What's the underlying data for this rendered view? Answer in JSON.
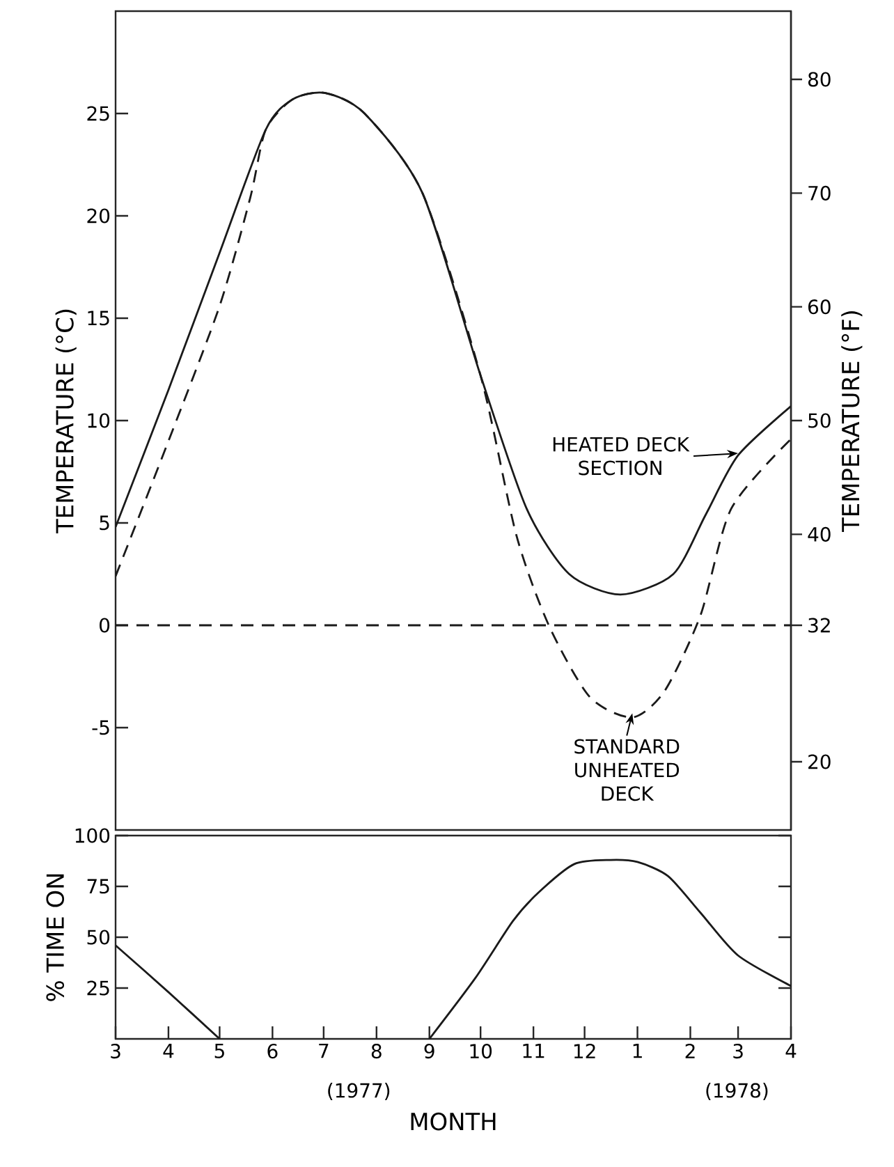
{
  "chart_data": [
    {
      "type": "line",
      "ylabel": "TEMPERATURE (°C)",
      "y2label": "TEMPERATURE (°F)",
      "xlim": [
        "1977-03-01",
        "1978-04-01"
      ],
      "ylim": [
        -10,
        30
      ],
      "yticks": [
        -5,
        0,
        5,
        10,
        15,
        20,
        25
      ],
      "y2lim": [
        14,
        86
      ],
      "y2ticks": [
        20,
        32,
        40,
        50,
        60,
        70,
        80
      ],
      "tick_labels": "y",
      "series": [
        {
          "color": "#1a1a1a",
          "line_style": "solid",
          "x": [
            "1977-03-01",
            "1977-04-01",
            "1977-05-01",
            "1977-05-28",
            "1977-06-13",
            "1977-07-02",
            "1977-07-25",
            "1977-08-28",
            "1977-10-01",
            "1977-10-28",
            "1977-11-22",
            "1977-12-22",
            "1978-01-22",
            "1978-02-10",
            "1978-03-01",
            "1978-04-01"
          ],
          "values": [
            4.8,
            11.5,
            18.2,
            24.2,
            25.7,
            26.0,
            25.0,
            21.1,
            12.2,
            5.7,
            2.5,
            1.5,
            2.5,
            5.4,
            8.3,
            10.7
          ]
        },
        {
          "color": "#1a1a1a",
          "line_style": "dashed",
          "x": [
            "1977-03-01",
            "1977-04-01",
            "1977-05-01",
            "1977-05-19",
            "1977-05-28",
            "1977-06-13",
            "1977-07-02",
            "1977-07-25",
            "1977-08-28",
            "1977-10-01",
            "1977-10-22",
            "1977-11-10",
            "1977-12-04",
            "1977-12-29",
            "1978-01-17",
            "1978-02-07",
            "1978-02-25",
            "1978-04-01"
          ],
          "values": [
            2.4,
            9.0,
            15.6,
            20.9,
            24.2,
            25.7,
            26.0,
            25.0,
            21.1,
            12.2,
            4.4,
            0,
            -3.5,
            -4.5,
            -3.2,
            0.5,
            5.7,
            9.1
          ]
        }
      ],
      "ref_lines": [
        {
          "axis": "y",
          "value": 0,
          "line_style": "dashed",
          "color": "#1a1a1a"
        }
      ],
      "annotations": [
        {
          "text": "HEATED DECK SECTION",
          "x": "1978-03-01",
          "y": 8.4
        },
        {
          "text": "STANDARD UNHEATED DECK",
          "x": "1977-12-29",
          "y": -4.3
        }
      ]
    },
    {
      "type": "line",
      "ylabel": "% TIME ON",
      "xlabel": "MONTH",
      "xlim": [
        "1977-03-01",
        "1978-04-01"
      ],
      "ylim": [
        0,
        100
      ],
      "yticks": [
        25,
        50,
        75,
        100
      ],
      "xticks": [
        {
          "value": "1977-03-01",
          "label": "3"
        },
        {
          "value": "1977-04-01",
          "label": "4"
        },
        {
          "value": "1977-05-01",
          "label": "5"
        },
        {
          "value": "1977-06-01",
          "label": "6"
        },
        {
          "value": "1977-07-01",
          "label": "7"
        },
        {
          "value": "1977-08-01",
          "label": "8"
        },
        {
          "value": "1977-09-01",
          "label": "9"
        },
        {
          "value": "1977-10-01",
          "label": "10"
        },
        {
          "value": "1977-11-01",
          "label": "11"
        },
        {
          "value": "1977-12-01",
          "label": "12"
        },
        {
          "value": "1978-01-01",
          "label": "1"
        },
        {
          "value": "1978-02-01",
          "label": "2"
        },
        {
          "value": "1978-03-01",
          "label": "3"
        },
        {
          "value": "1978-04-01",
          "label": "4"
        }
      ],
      "series": [
        {
          "color": "#1a1a1a",
          "line_style": "solid",
          "x": [
            "1977-03-01",
            "1977-04-01",
            "1977-05-01",
            "1977-07-01",
            "1977-09-01",
            "1977-09-28",
            "1977-10-20",
            "1977-11-04",
            "1977-11-25",
            "1977-12-16",
            "1978-01-01",
            "1978-01-19",
            "1978-02-07",
            "1978-03-01",
            "1978-04-01"
          ],
          "values": [
            46,
            23,
            0,
            null,
            0,
            30,
            58,
            72,
            86,
            88,
            87,
            80,
            62,
            41,
            26
          ]
        }
      ],
      "annotations": [
        "(1977)",
        "(1978)"
      ]
    }
  ]
}
